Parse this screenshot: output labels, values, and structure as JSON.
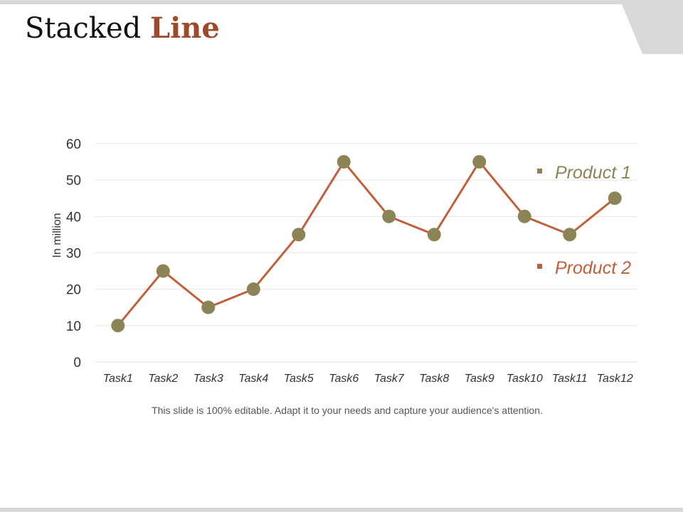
{
  "slide": {
    "title_main": "Stacked ",
    "title_accent": "Line",
    "caption": "This slide is 100% editable. Adapt it to your needs and capture your audience's attention."
  },
  "colors": {
    "line": "#c0603a",
    "marker": "#8c8456",
    "legend_product1": "#8c8456",
    "legend_product2": "#c0603a",
    "grid": "#e4e4e4",
    "axis_text": "#333333",
    "accent": "#9e4a2a"
  },
  "chart_data": {
    "type": "line",
    "title": "",
    "xlabel": "",
    "ylabel": "In million",
    "ylim": [
      0,
      60
    ],
    "yticks": [
      0,
      10,
      20,
      30,
      40,
      50,
      60
    ],
    "grid": true,
    "legend_position": "right",
    "categories": [
      "Task1",
      "Task2",
      "Task3",
      "Task4",
      "Task5",
      "Task6",
      "Task7",
      "Task8",
      "Task9",
      "Task10",
      "Task11",
      "Task12"
    ],
    "series": [
      {
        "name": "Product 1",
        "values": [
          10,
          25,
          15,
          20,
          35,
          55,
          40,
          35,
          55,
          40,
          35,
          45
        ]
      }
    ],
    "legend": [
      "Product 1",
      "Product 2"
    ]
  }
}
